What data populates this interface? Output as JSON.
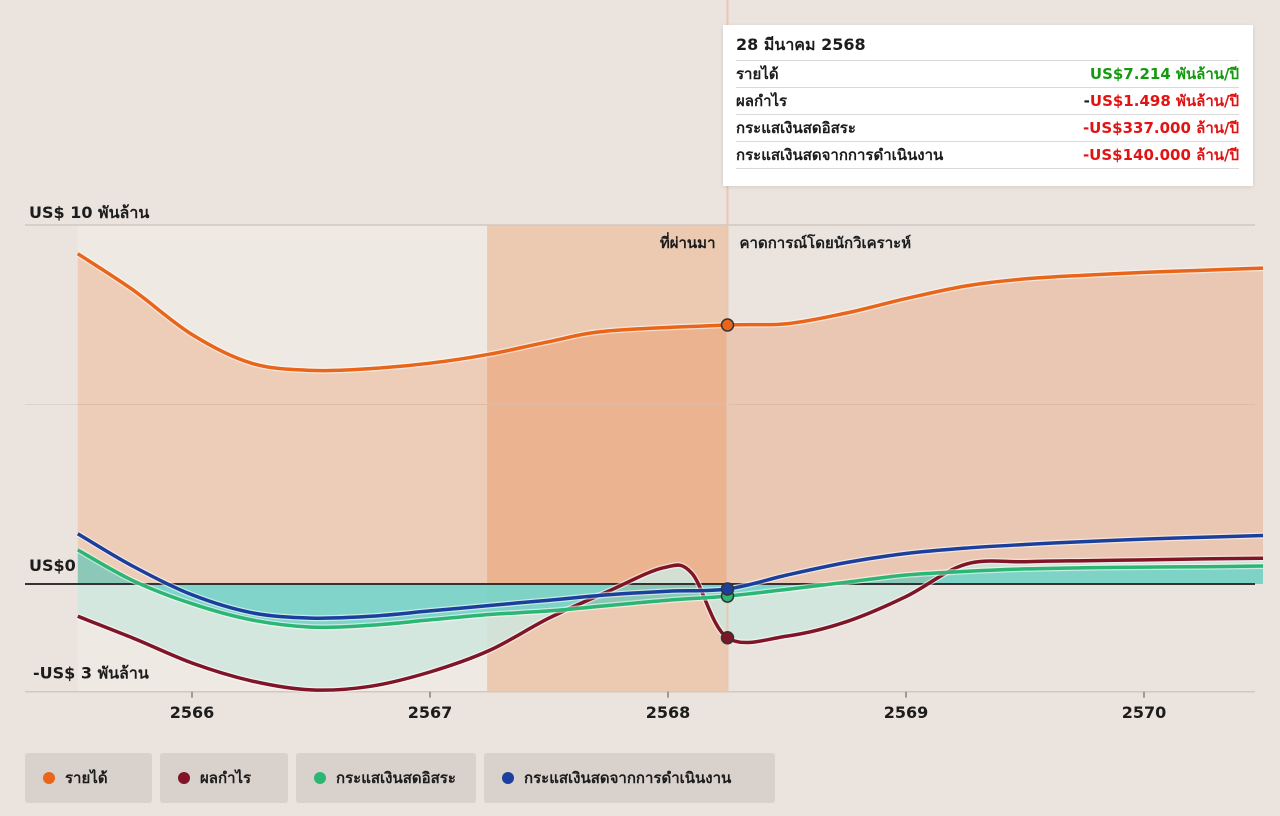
{
  "chart_data": {
    "type": "area",
    "title": "",
    "x_years": [
      2566,
      2567,
      2568,
      2569,
      2570
    ],
    "x_labels": [
      "2566",
      "2567",
      "2568",
      "2569",
      "2570"
    ],
    "y_unit": "billion USD",
    "ylim": [
      -3,
      10
    ],
    "y_labels": [
      "US$ 10 พันล้าน",
      "US$0",
      "-US$ 3 พันล้าน"
    ],
    "segments": {
      "past": "ที่ผ่านมา",
      "forecast": "คาดการณ์โดยนักวิเคราะห์"
    },
    "series": [
      {
        "name": "รายได้",
        "color": "#e8651a",
        "points": [
          [
            2565.52,
            9.2
          ],
          [
            2565.75,
            8.2
          ],
          [
            2566.0,
            6.95
          ],
          [
            2566.25,
            6.15
          ],
          [
            2566.5,
            5.95
          ],
          [
            2566.75,
            6.0
          ],
          [
            2567.0,
            6.15
          ],
          [
            2567.25,
            6.4
          ],
          [
            2567.5,
            6.75
          ],
          [
            2567.75,
            7.05
          ],
          [
            2568.25,
            7.214
          ],
          [
            2568.5,
            7.25
          ],
          [
            2568.75,
            7.55
          ],
          [
            2569.0,
            7.95
          ],
          [
            2569.25,
            8.3
          ],
          [
            2569.5,
            8.5
          ],
          [
            2569.75,
            8.6
          ],
          [
            2570.0,
            8.68
          ],
          [
            2570.25,
            8.74
          ],
          [
            2570.5,
            8.8
          ]
        ]
      },
      {
        "name": "ผลกำไร",
        "color": "#7f1526",
        "points": [
          [
            2565.52,
            -0.9
          ],
          [
            2565.75,
            -1.5
          ],
          [
            2566.0,
            -2.2
          ],
          [
            2566.25,
            -2.7
          ],
          [
            2566.5,
            -2.95
          ],
          [
            2566.75,
            -2.85
          ],
          [
            2567.0,
            -2.45
          ],
          [
            2567.25,
            -1.85
          ],
          [
            2567.5,
            -0.95
          ],
          [
            2567.75,
            -0.2
          ],
          [
            2567.98,
            0.45
          ],
          [
            2568.1,
            0.3
          ],
          [
            2568.25,
            -1.498
          ],
          [
            2568.5,
            -1.45
          ],
          [
            2568.75,
            -1.05
          ],
          [
            2569.0,
            -0.35
          ],
          [
            2569.25,
            0.55
          ],
          [
            2569.5,
            0.62
          ],
          [
            2569.75,
            0.65
          ],
          [
            2570.0,
            0.67
          ],
          [
            2570.25,
            0.7
          ],
          [
            2570.5,
            0.72
          ]
        ]
      },
      {
        "name": "กระแสเงินสดอิสระ",
        "color": "#2bb673",
        "points": [
          [
            2565.52,
            0.95
          ],
          [
            2565.75,
            0.1
          ],
          [
            2566.0,
            -0.55
          ],
          [
            2566.25,
            -1.0
          ],
          [
            2566.5,
            -1.2
          ],
          [
            2566.75,
            -1.15
          ],
          [
            2567.0,
            -1.0
          ],
          [
            2567.25,
            -0.85
          ],
          [
            2567.5,
            -0.75
          ],
          [
            2567.75,
            -0.6
          ],
          [
            2568.0,
            -0.45
          ],
          [
            2568.25,
            -0.337
          ],
          [
            2568.5,
            -0.15
          ],
          [
            2568.75,
            0.05
          ],
          [
            2569.0,
            0.25
          ],
          [
            2569.25,
            0.35
          ],
          [
            2569.5,
            0.42
          ],
          [
            2569.75,
            0.45
          ],
          [
            2570.0,
            0.47
          ],
          [
            2570.25,
            0.48
          ],
          [
            2570.5,
            0.5
          ]
        ]
      },
      {
        "name": "กระแสเงินสดจากการดำเนินงาน",
        "color": "#1b3f9c",
        "points": [
          [
            2565.52,
            1.4
          ],
          [
            2565.75,
            0.5
          ],
          [
            2566.0,
            -0.3
          ],
          [
            2566.25,
            -0.8
          ],
          [
            2566.5,
            -0.95
          ],
          [
            2566.75,
            -0.9
          ],
          [
            2567.0,
            -0.75
          ],
          [
            2567.25,
            -0.6
          ],
          [
            2567.5,
            -0.45
          ],
          [
            2567.75,
            -0.3
          ],
          [
            2568.0,
            -0.2
          ],
          [
            2568.25,
            -0.14
          ],
          [
            2568.5,
            0.25
          ],
          [
            2568.75,
            0.6
          ],
          [
            2569.0,
            0.85
          ],
          [
            2569.25,
            1.0
          ],
          [
            2569.5,
            1.1
          ],
          [
            2569.75,
            1.18
          ],
          [
            2570.0,
            1.25
          ],
          [
            2570.25,
            1.3
          ],
          [
            2570.5,
            1.35
          ]
        ]
      }
    ]
  },
  "tooltip": {
    "date": "28 มีนาคม 2568",
    "rows": [
      {
        "label": "รายได้",
        "prefix": "",
        "value": "US$7.214 พันล้าน/ปี",
        "color": "#159a0f"
      },
      {
        "label": "ผลกำไร",
        "prefix": "-",
        "value": "US$1.498 พันล้าน/ปี",
        "color": "#e21313"
      },
      {
        "label": "กระแสเงินสดอิสระ",
        "prefix": "",
        "value": "-US$337.000 ล้าน/ปี",
        "color": "#e21313"
      },
      {
        "label": "กระแสเงินสดจากการดำเนินงาน",
        "prefix": "",
        "value": "-US$140.000 ล้าน/ปี",
        "color": "#e21313"
      }
    ]
  },
  "legend": [
    {
      "label": "รายได้",
      "color": "#e8651a"
    },
    {
      "label": "ผลกำไร",
      "color": "#7f1526"
    },
    {
      "label": "กระแสเงินสดอิสระ",
      "color": "#2bb673"
    },
    {
      "label": "กระแสเงินสดจากการดำเนินงาน",
      "color": "#1b3f9c"
    }
  ],
  "hover_date": 2568.25
}
